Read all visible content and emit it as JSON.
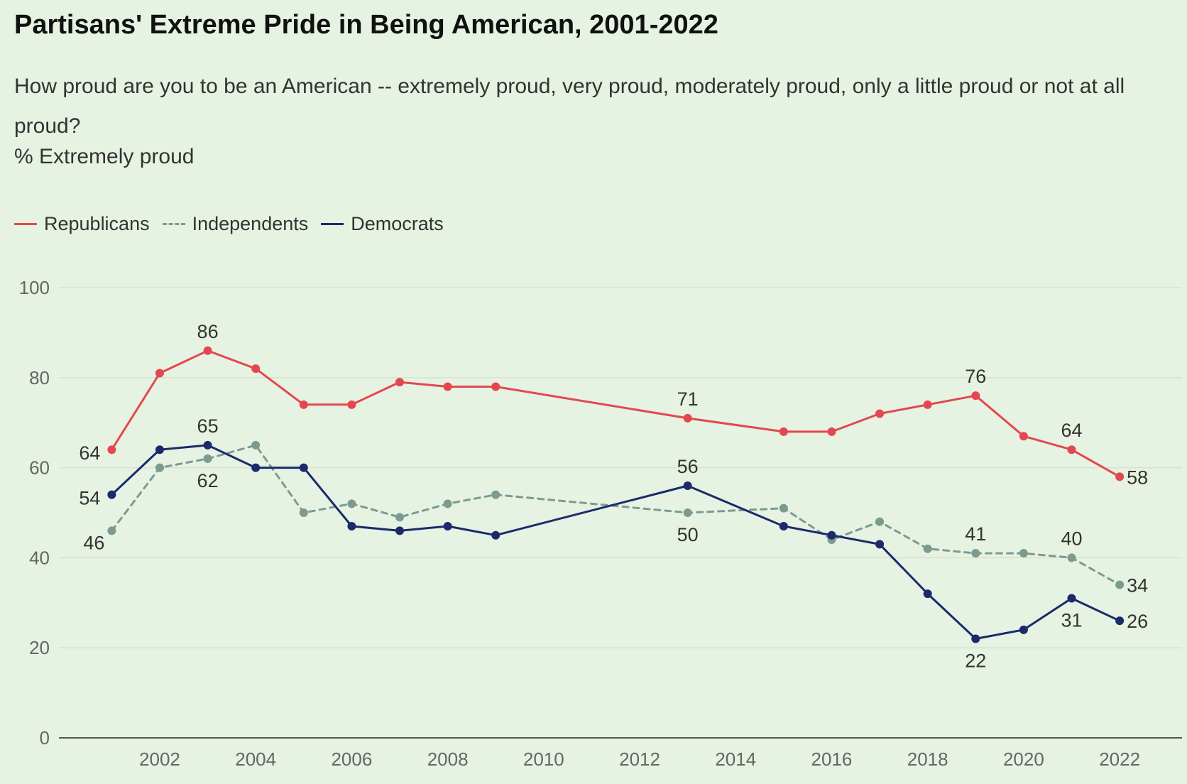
{
  "chart_data": {
    "type": "line",
    "title": "Partisans' Extreme Pride in Being American, 2001-2022",
    "subtitle": "How proud are you to be an American -- extremely proud, very proud, moderately proud, only a little proud or not at all proud?",
    "unit_label": "% Extremely proud",
    "xlabel": "",
    "ylabel": "",
    "xlim": [
      1999.9,
      2023.3
    ],
    "ylim": [
      0,
      100
    ],
    "y_ticks": [
      0,
      20,
      40,
      60,
      80,
      100
    ],
    "x_ticks": [
      2002,
      2004,
      2006,
      2008,
      2010,
      2012,
      2014,
      2016,
      2018,
      2020,
      2022
    ],
    "grid": "horizontal",
    "legend_position": "top-left",
    "series": [
      {
        "name": "Republicans",
        "color": "#e34850",
        "dashed": false,
        "points": [
          {
            "x": 2001,
            "y": 64
          },
          {
            "x": 2002,
            "y": 81
          },
          {
            "x": 2003,
            "y": 86
          },
          {
            "x": 2004,
            "y": 82
          },
          {
            "x": 2005,
            "y": 74
          },
          {
            "x": 2006,
            "y": 74
          },
          {
            "x": 2007,
            "y": 79
          },
          {
            "x": 2008,
            "y": 78
          },
          {
            "x": 2009,
            "y": 78
          },
          {
            "x": 2013,
            "y": 71
          },
          {
            "x": 2015,
            "y": 68
          },
          {
            "x": 2016,
            "y": 68
          },
          {
            "x": 2017,
            "y": 72
          },
          {
            "x": 2018,
            "y": 74
          },
          {
            "x": 2019,
            "y": 76
          },
          {
            "x": 2020,
            "y": 67
          },
          {
            "x": 2021,
            "y": 64
          },
          {
            "x": 2022,
            "y": 58
          }
        ],
        "labels": [
          {
            "x": 2001,
            "text": "64",
            "pos": "left"
          },
          {
            "x": 2003,
            "text": "86",
            "pos": "above"
          },
          {
            "x": 2013,
            "text": "71",
            "pos": "above"
          },
          {
            "x": 2019,
            "text": "76",
            "pos": "above"
          },
          {
            "x": 2021,
            "text": "64",
            "pos": "above"
          },
          {
            "x": 2022,
            "text": "58",
            "pos": "right"
          }
        ]
      },
      {
        "name": "Independents",
        "color": "#7d9a92",
        "dashed": true,
        "points": [
          {
            "x": 2001,
            "y": 46
          },
          {
            "x": 2002,
            "y": 60
          },
          {
            "x": 2003,
            "y": 62
          },
          {
            "x": 2004,
            "y": 65
          },
          {
            "x": 2005,
            "y": 50
          },
          {
            "x": 2006,
            "y": 52
          },
          {
            "x": 2007,
            "y": 49
          },
          {
            "x": 2008,
            "y": 52
          },
          {
            "x": 2009,
            "y": 54
          },
          {
            "x": 2013,
            "y": 50
          },
          {
            "x": 2015,
            "y": 51
          },
          {
            "x": 2016,
            "y": 44
          },
          {
            "x": 2017,
            "y": 48
          },
          {
            "x": 2018,
            "y": 42
          },
          {
            "x": 2019,
            "y": 41
          },
          {
            "x": 2020,
            "y": 41
          },
          {
            "x": 2021,
            "y": 40
          },
          {
            "x": 2022,
            "y": 34
          }
        ],
        "labels": [
          {
            "x": 2001,
            "text": "46",
            "pos": "below-left"
          },
          {
            "x": 2003,
            "text": "62",
            "pos": "below"
          },
          {
            "x": 2013,
            "text": "50",
            "pos": "below"
          },
          {
            "x": 2019,
            "text": "41",
            "pos": "above"
          },
          {
            "x": 2021,
            "text": "40",
            "pos": "above"
          },
          {
            "x": 2022,
            "text": "34",
            "pos": "right"
          }
        ]
      },
      {
        "name": "Democrats",
        "color": "#1b2a6b",
        "dashed": false,
        "points": [
          {
            "x": 2001,
            "y": 54
          },
          {
            "x": 2002,
            "y": 64
          },
          {
            "x": 2003,
            "y": 65
          },
          {
            "x": 2004,
            "y": 60
          },
          {
            "x": 2005,
            "y": 60
          },
          {
            "x": 2006,
            "y": 47
          },
          {
            "x": 2007,
            "y": 46
          },
          {
            "x": 2008,
            "y": 47
          },
          {
            "x": 2009,
            "y": 45
          },
          {
            "x": 2013,
            "y": 56
          },
          {
            "x": 2015,
            "y": 47
          },
          {
            "x": 2016,
            "y": 45
          },
          {
            "x": 2017,
            "y": 43
          },
          {
            "x": 2018,
            "y": 32
          },
          {
            "x": 2019,
            "y": 22
          },
          {
            "x": 2020,
            "y": 24
          },
          {
            "x": 2021,
            "y": 31
          },
          {
            "x": 2022,
            "y": 26
          }
        ],
        "labels": [
          {
            "x": 2001,
            "text": "54",
            "pos": "left"
          },
          {
            "x": 2003,
            "text": "65",
            "pos": "above"
          },
          {
            "x": 2013,
            "text": "56",
            "pos": "above"
          },
          {
            "x": 2019,
            "text": "22",
            "pos": "below"
          },
          {
            "x": 2021,
            "text": "31",
            "pos": "below"
          },
          {
            "x": 2022,
            "text": "26",
            "pos": "right"
          }
        ]
      }
    ]
  }
}
